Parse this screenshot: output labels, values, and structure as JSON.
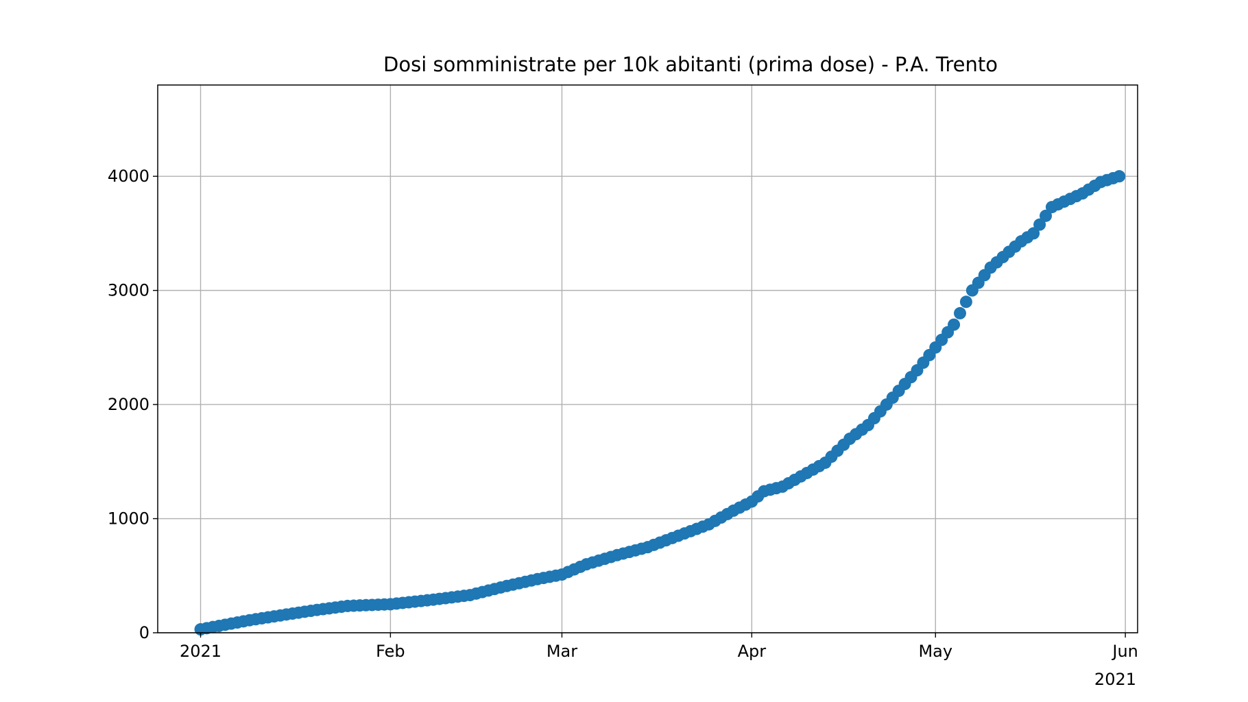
{
  "chart_data": {
    "type": "scatter",
    "title": "Dosi somministrate per 10k abitanti (prima dose) - P.A. Trento",
    "xlabel": "",
    "ylabel": "",
    "x_range": [
      "2020-12-25",
      "2021-06-03"
    ],
    "ylim": [
      0,
      4800
    ],
    "x_ticks": [
      {
        "date": "2021-01-01",
        "label": "2021"
      },
      {
        "date": "2021-02-01",
        "label": "Feb"
      },
      {
        "date": "2021-03-01",
        "label": "Mar"
      },
      {
        "date": "2021-04-01",
        "label": "Apr"
      },
      {
        "date": "2021-05-01",
        "label": "May"
      },
      {
        "date": "2021-06-01",
        "label": "Jun"
      }
    ],
    "x_offset_label": "2021",
    "y_ticks": [
      0,
      1000,
      2000,
      3000,
      4000
    ],
    "grid": true,
    "marker_color": "#1f77b4",
    "series": [
      {
        "x_start": "2021-01-01",
        "x_end": "2021-05-31",
        "y_anchors": [
          [
            "2021-01-01",
            30
          ],
          [
            "2021-01-05",
            70
          ],
          [
            "2021-01-09",
            110
          ],
          [
            "2021-01-15",
            160
          ],
          [
            "2021-01-20",
            200
          ],
          [
            "2021-01-25",
            235
          ],
          [
            "2021-02-01",
            250
          ],
          [
            "2021-02-08",
            290
          ],
          [
            "2021-02-14",
            330
          ],
          [
            "2021-02-20",
            410
          ],
          [
            "2021-02-25",
            470
          ],
          [
            "2021-03-01",
            510
          ],
          [
            "2021-03-05",
            600
          ],
          [
            "2021-03-10",
            680
          ],
          [
            "2021-03-15",
            750
          ],
          [
            "2021-03-20",
            850
          ],
          [
            "2021-03-25",
            950
          ],
          [
            "2021-03-29",
            1070
          ],
          [
            "2021-04-01",
            1150
          ],
          [
            "2021-04-03",
            1240
          ],
          [
            "2021-04-06",
            1280
          ],
          [
            "2021-04-10",
            1400
          ],
          [
            "2021-04-13",
            1490
          ],
          [
            "2021-04-17",
            1700
          ],
          [
            "2021-04-20",
            1820
          ],
          [
            "2021-04-24",
            2060
          ],
          [
            "2021-04-28",
            2300
          ],
          [
            "2021-05-01",
            2500
          ],
          [
            "2021-05-04",
            2700
          ],
          [
            "2021-05-07",
            3000
          ],
          [
            "2021-05-10",
            3200
          ],
          [
            "2021-05-15",
            3430
          ],
          [
            "2021-05-17",
            3500
          ],
          [
            "2021-05-20",
            3730
          ],
          [
            "2021-05-25",
            3850
          ],
          [
            "2021-05-28",
            3950
          ],
          [
            "2021-05-31",
            4000
          ]
        ]
      }
    ]
  }
}
